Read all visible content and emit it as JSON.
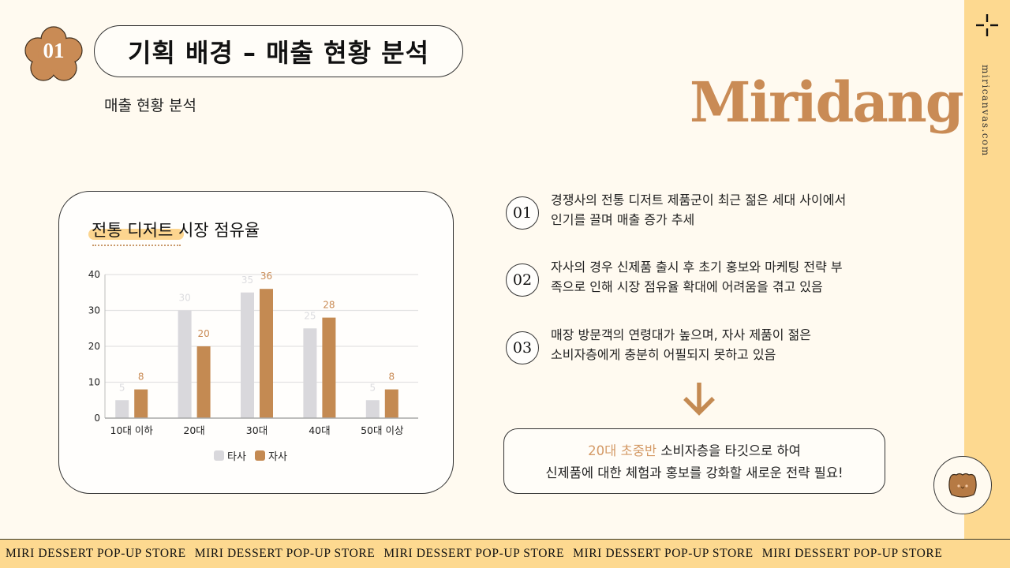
{
  "header": {
    "section_number": "01",
    "title": "기획 배경 – 매출 현황 분석",
    "subtitle": "매출 현황 분석",
    "brand": "Miridang"
  },
  "side": {
    "url": "miricanvas.com",
    "icon": "crosshair-sparkle-icon"
  },
  "chart_card": {
    "title": "전통 디저트 시장 점유율"
  },
  "chart_data": {
    "type": "bar",
    "title": "전통 디저트 시장 점유율",
    "categories": [
      "10대 이하",
      "20대",
      "30대",
      "40대",
      "50대 이상"
    ],
    "series": [
      {
        "name": "타사",
        "color": "#d9d8dc",
        "values": [
          5,
          30,
          35,
          25,
          5
        ]
      },
      {
        "name": "자사",
        "color": "#c48a52",
        "values": [
          8,
          20,
          36,
          28,
          8
        ]
      }
    ],
    "xlabel": "",
    "ylabel": "",
    "ylim": [
      0,
      40
    ],
    "yticks": [
      0,
      10,
      20,
      30,
      40
    ],
    "grid": true,
    "legend_position": "bottom",
    "data_labels": true
  },
  "points": [
    {
      "num": "01",
      "line1": "경쟁사의 전통 디저트 제품군이 최근 젊은 세대 사이에서",
      "line2": "인기를 끌며 매출 증가 추세"
    },
    {
      "num": "02",
      "line1": "자사의 경우 신제품 출시 후 초기 홍보와 마케팅 전략 부",
      "line2": "족으로 인해 시장 점유율 확대에 어려움을 겪고 있음"
    },
    {
      "num": "03",
      "line1": "매장 방문객의 연령대가 높으며, 자사 제품이 젊은",
      "line2": "소비자층에게 충분히 어필되지 못하고 있음"
    }
  ],
  "conclusion": {
    "accent": "20대 초중반",
    "line1_rest": " 소비자층을 타깃으로 하여",
    "line2": "신제품에 대한 체험과 홍보를 강화할 새로운 전략 필요!"
  },
  "footer": {
    "items": [
      "MIRI DESSERT POP-UP STORE",
      "MIRI DESSERT POP-UP STORE",
      "MIRI DESSERT POP-UP STORE",
      "MIRI DESSERT POP-UP STORE",
      "MIRI DESSERT POP-UP STORE"
    ]
  },
  "colors": {
    "background": "#fffaf0",
    "band": "#fdd990",
    "brand": "#c98b55",
    "competitor_bar": "#d9d8dc",
    "own_bar": "#c48a52",
    "highlight": "#fcd58f"
  }
}
